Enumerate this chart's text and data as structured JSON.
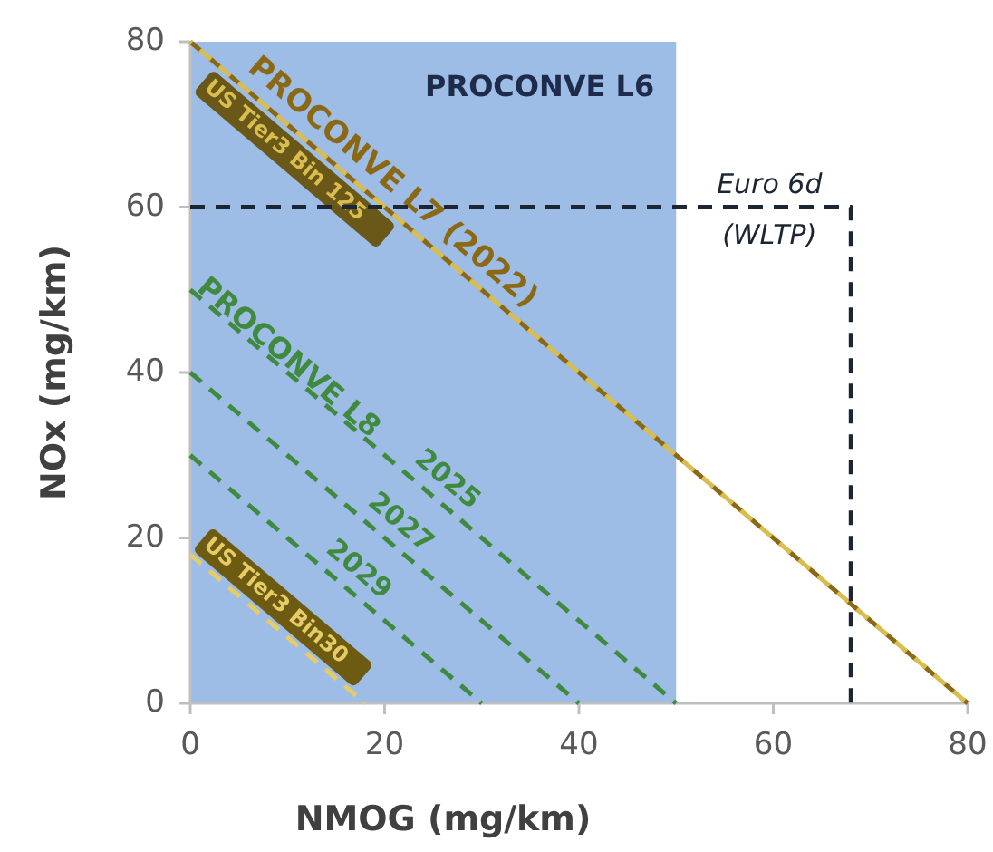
{
  "chart_data": {
    "type": "line",
    "xlabel": "NMOG (mg/km)",
    "ylabel": "NOx (mg/km)",
    "xlim": [
      0,
      80
    ],
    "ylim": [
      0,
      80
    ],
    "xticks": [
      0,
      20,
      40,
      60,
      80
    ],
    "yticks": [
      0,
      20,
      40,
      60,
      80
    ],
    "grid": false,
    "line_style": "dashed",
    "bands": [
      {
        "axis": "x",
        "from": 0,
        "to": 50,
        "label": "PROCONVE L6",
        "color": "#9dbde6"
      }
    ],
    "annotations": [
      "PROCONVE L8"
    ],
    "series": [
      {
        "name": "PROCONVE L7 (2022)",
        "color": "#8b6914",
        "x": [
          0,
          80
        ],
        "values": [
          80,
          0
        ]
      },
      {
        "name": "US Tier3 Bin 125",
        "color": "#d9bd4f",
        "x": [
          0,
          80
        ],
        "values": [
          80,
          0
        ]
      },
      {
        "name": "2025",
        "color": "#3f8a3f",
        "x": [
          0,
          50
        ],
        "values": [
          50,
          0
        ]
      },
      {
        "name": "2027",
        "color": "#3f8a3f",
        "x": [
          0,
          40
        ],
        "values": [
          40,
          0
        ]
      },
      {
        "name": "2029",
        "color": "#3f8a3f",
        "x": [
          0,
          30
        ],
        "values": [
          30,
          0
        ]
      },
      {
        "name": "US Tier3 Bin30",
        "color": "#e6cc66",
        "x": [
          0,
          18
        ],
        "values": [
          18,
          0
        ]
      },
      {
        "name": "Euro 6d (WLTP)",
        "color": "#1c2533",
        "x": [
          0,
          68,
          68
        ],
        "values": [
          60,
          60,
          0
        ]
      }
    ]
  }
}
